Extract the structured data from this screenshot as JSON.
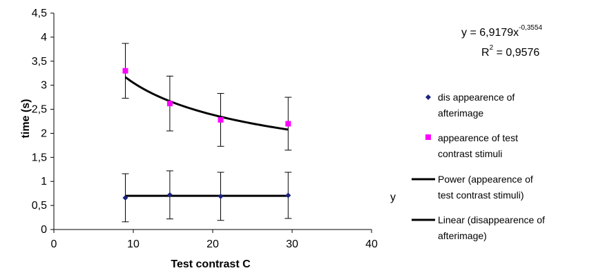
{
  "chart_data": {
    "type": "scatter",
    "xlabel": "Test contrast C",
    "ylabel": "time (s)",
    "xlim": [
      0,
      40
    ],
    "ylim": [
      0,
      4.5
    ],
    "x_ticks": [
      "0",
      "10",
      "20",
      "30",
      "40"
    ],
    "y_ticks": [
      "0",
      "0,5",
      "1",
      "1,5",
      "2",
      "2,5",
      "3",
      "3,5",
      "4",
      "4,5"
    ],
    "grid": false,
    "legend_position": "right",
    "series": [
      {
        "name": "disappearence of afterimage",
        "marker": "diamond",
        "color": "#1a237e",
        "x": [
          9,
          14.6,
          21,
          29.5
        ],
        "y": [
          0.66,
          0.72,
          0.69,
          0.71
        ],
        "err": [
          0.5,
          0.5,
          0.5,
          0.48
        ]
      },
      {
        "name": "appearence of test contrast stimuli",
        "marker": "square",
        "color": "#ff00ff",
        "x": [
          9,
          14.6,
          21,
          29.5
        ],
        "y": [
          3.3,
          2.62,
          2.28,
          2.2
        ],
        "err": [
          0.57,
          0.57,
          0.55,
          0.55
        ]
      }
    ],
    "trendlines": [
      {
        "name": "Power (appearence of test contrast stimuli)",
        "kind": "power",
        "a": 6.9179,
        "b": -0.3554,
        "color": "#000000"
      },
      {
        "name": "Linear (disappearence of afterimage)",
        "kind": "linear",
        "value": 0.7,
        "color": "#000000"
      }
    ],
    "annotations": {
      "equation_main": "y = 6,9179x",
      "equation_exp": "-0,3554",
      "r2_prefix": "R",
      "r2_exp": "2",
      "r2_value": " = 0,9576",
      "stray_label": "y"
    },
    "legend": {
      "entries": [
        [
          "dis appearence of",
          "afterimage"
        ],
        [
          "appearence of test",
          "contrast stimuli"
        ],
        [
          "Power (appearence of",
          "test contrast stimuli)"
        ],
        [
          "Linear (disappearence of",
          "afterimage)"
        ]
      ]
    }
  }
}
